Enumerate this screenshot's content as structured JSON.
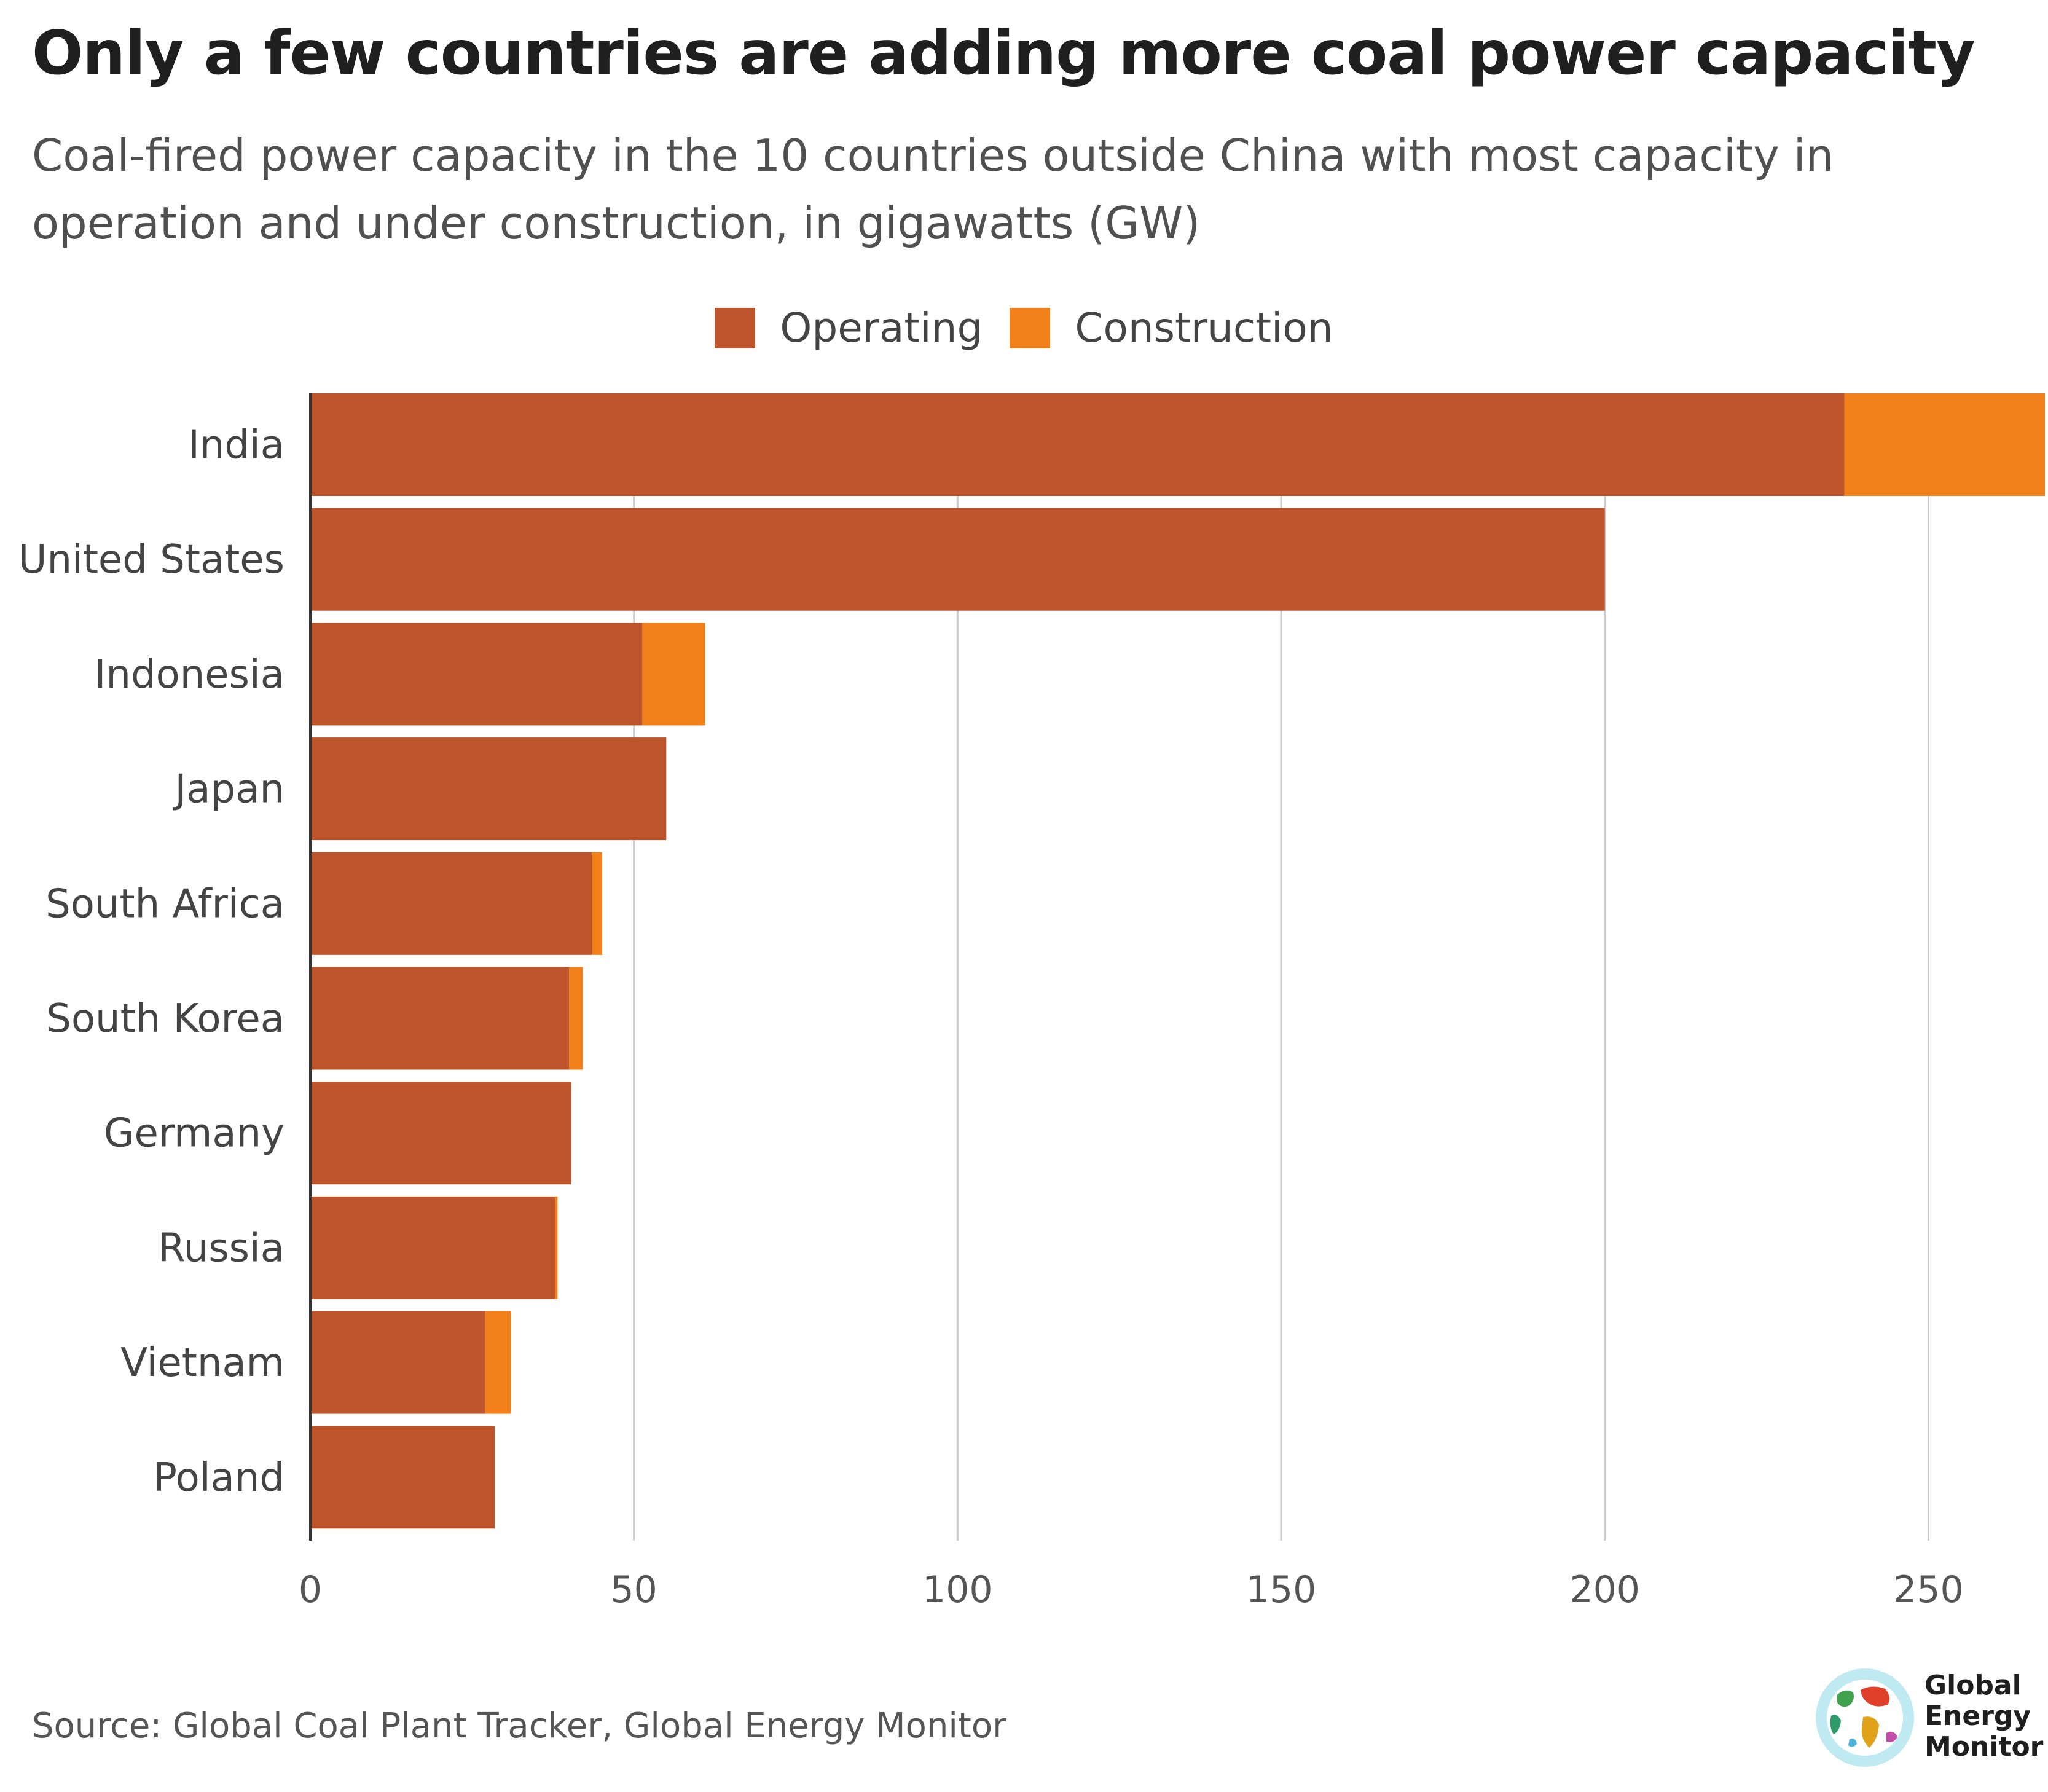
{
  "title": "Only a few countries are adding more coal power capacity",
  "subtitle": "Coal-fired power capacity in the 10 countries outside China with most capacity in operation and under construction, in gigawatts (GW)",
  "source": "Source: Global Coal Plant Tracker, Global Energy Monitor",
  "logo": {
    "line1": "Global",
    "line2": "Energy",
    "line3": "Monitor"
  },
  "colors": {
    "operating": "#bd542c",
    "construction": "#f2801b",
    "grid": "#cccccc",
    "axis": "#333333"
  },
  "chart_data": {
    "type": "bar",
    "orientation": "horizontal",
    "stacked": true,
    "categories": [
      "India",
      "United States",
      "Indonesia",
      "Japan",
      "South Africa",
      "South Korea",
      "Germany",
      "Russia",
      "Vietnam",
      "Poland"
    ],
    "series": [
      {
        "name": "Operating",
        "color": "#bd542c",
        "values": [
          237,
          200,
          51.3,
          55,
          43.5,
          40,
          40.3,
          37.8,
          27,
          28.5
        ]
      },
      {
        "name": "Construction",
        "color": "#f2801b",
        "values": [
          31,
          0,
          9.7,
          0,
          1.6,
          2.1,
          0,
          0.4,
          4,
          0
        ]
      }
    ],
    "xlim": [
      0,
      268
    ],
    "xticks": [
      0,
      50,
      100,
      150,
      200,
      250
    ],
    "grid": true,
    "legend_position": "top-center",
    "xlabel": "",
    "ylabel": ""
  }
}
